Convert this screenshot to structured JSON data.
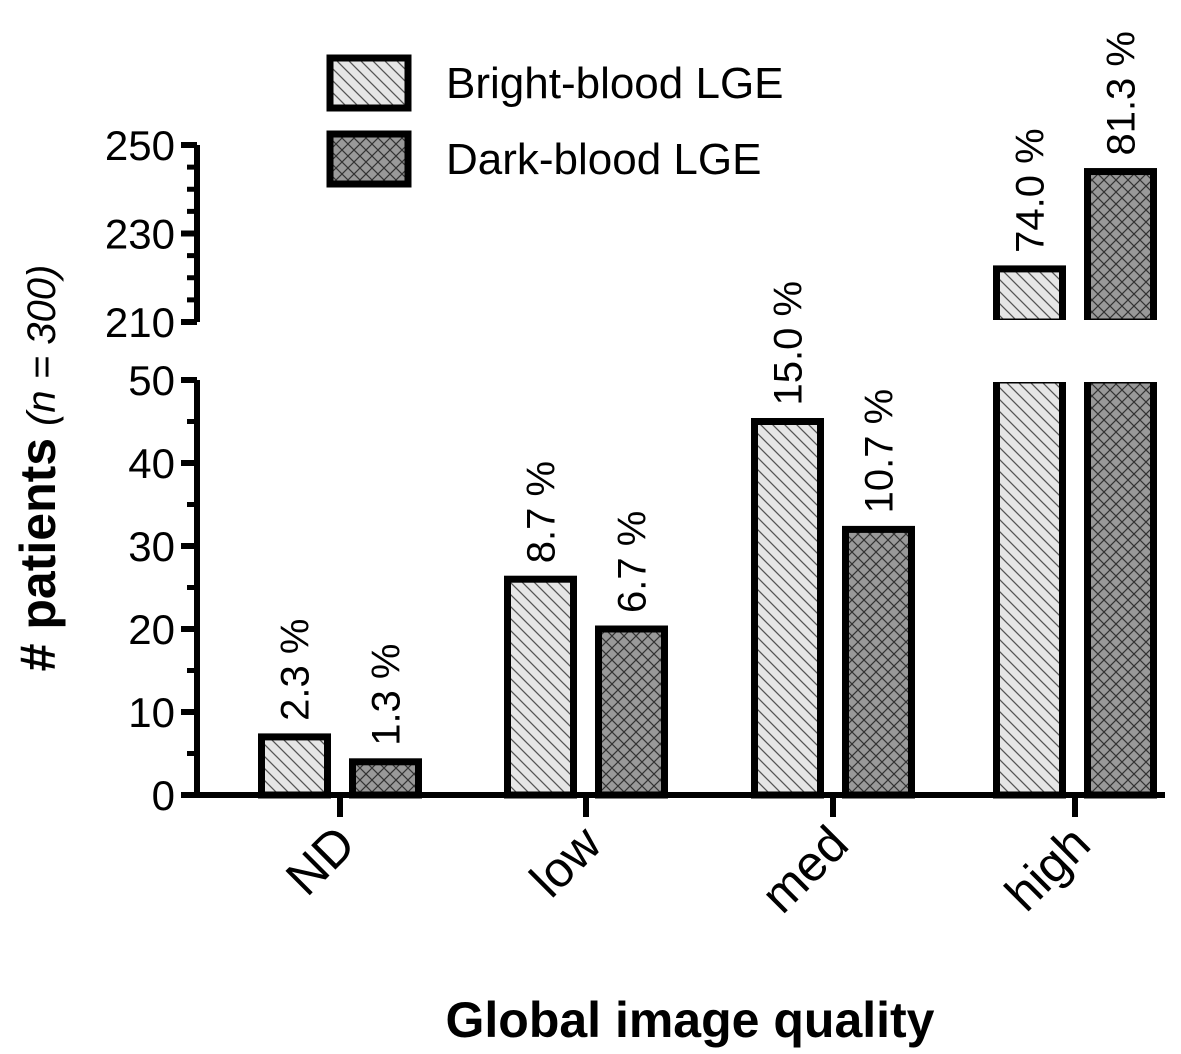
{
  "chart_data": {
    "type": "bar",
    "xlabel": "Global image quality",
    "ylabel": {
      "main": "# patients",
      "open_paren": "(",
      "n_symbol": "n",
      "equals_value": " = 300)"
    },
    "categories": [
      "ND",
      "low",
      "med",
      "high"
    ],
    "series": [
      {
        "name": "Bright-blood LGE",
        "values": [
          7,
          26,
          45,
          222
        ],
        "labels": [
          "2.3 %",
          "8.7 %",
          "15.0 %",
          "74.0 %"
        ],
        "fill": "#e6e6e6",
        "pattern": "diagonal-hatch"
      },
      {
        "name": "Dark-blood LGE",
        "values": [
          4,
          20,
          32,
          244
        ],
        "labels": [
          "1.3 %",
          "6.7 %",
          "10.7 %",
          "81.3 %"
        ],
        "fill": "#999999",
        "pattern": "crosshatch"
      }
    ],
    "yaxis": {
      "broken": true,
      "lower_range": [
        0,
        50
      ],
      "upper_range": [
        210,
        250
      ],
      "lower_ticks": [
        "0",
        "10",
        "20",
        "30",
        "40",
        "50"
      ],
      "upper_ticks": [
        "210",
        "230",
        "250"
      ]
    },
    "legend_position": "top",
    "grid": false
  }
}
